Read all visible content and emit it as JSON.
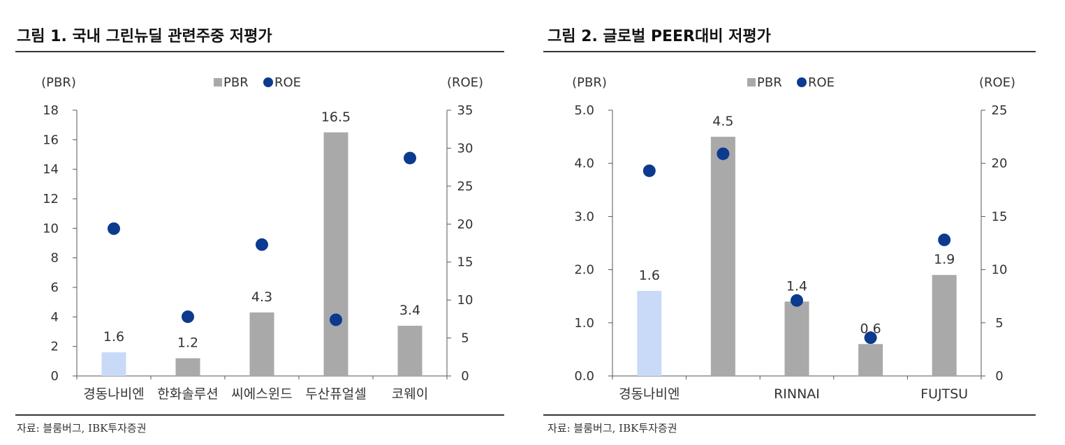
{
  "colors": {
    "bar_gray": "#aaa9a9",
    "bar_highlight": "#c8daf8",
    "roe_dot": "#0b3a8f",
    "axis": "#555555",
    "rule": "#333333"
  },
  "figures": [
    {
      "title": "그림 1. 국내 그린뉴딜 관련주중 저평가",
      "source": "자료: 블룸버그, IBK투자증권"
    },
    {
      "title": "그림 2. 글로벌 PEER대비 저평가",
      "source": "자료: 블룸버그, IBK투자증권"
    }
  ],
  "chart_data": [
    {
      "type": "bar",
      "categories": [
        "경동나비엔",
        "한화솔루션",
        "씨에스윈드",
        "두산퓨얼셀",
        "코웨이"
      ],
      "category_labels": [
        "경동나비엔",
        "한화솔루션",
        "씨에스윈드",
        "두산퓨얼셀",
        "코웨이"
      ],
      "series": [
        {
          "name": "PBR",
          "type": "bar",
          "axis": "left",
          "values": [
            1.6,
            1.2,
            4.3,
            16.5,
            3.4
          ],
          "highlight_index": 0
        },
        {
          "name": "ROE",
          "type": "scatter",
          "axis": "right",
          "values": [
            19.4,
            7.8,
            17.3,
            7.4,
            28.7
          ]
        }
      ],
      "data_labels": [
        "1.6",
        "1.2",
        "4.3",
        "16.5",
        "3.4"
      ],
      "left_axis_unit": "(PBR)",
      "right_axis_unit": "(ROE)",
      "ylim_left": [
        0,
        18
      ],
      "ylim_right": [
        0,
        35
      ],
      "ticks_left": [
        "0",
        "2",
        "4",
        "6",
        "8",
        "10",
        "12",
        "14",
        "16",
        "18"
      ],
      "ticks_right": [
        "0",
        "5",
        "10",
        "15",
        "20",
        "25",
        "30",
        "35"
      ],
      "legend": [
        "PBR",
        "ROE"
      ],
      "legend_position": "top",
      "grid": false
    },
    {
      "type": "bar",
      "categories": [
        "경동나비엔",
        "",
        "RINNAI",
        "",
        "FUJTSU"
      ],
      "category_labels": [
        "경동나비엔",
        "",
        "RINNAI",
        "",
        "FUJTSU"
      ],
      "series": [
        {
          "name": "PBR",
          "type": "bar",
          "axis": "left",
          "values": [
            1.6,
            4.5,
            1.4,
            0.6,
            1.9
          ],
          "highlight_index": 0
        },
        {
          "name": "ROE",
          "type": "scatter",
          "axis": "right",
          "values": [
            19.3,
            20.9,
            7.1,
            3.6,
            12.8
          ]
        }
      ],
      "data_labels": [
        "1.6",
        "4.5",
        "1.4",
        "0.6",
        "1.9"
      ],
      "left_axis_unit": "(PBR)",
      "right_axis_unit": "(ROE)",
      "ylim_left": [
        0,
        5
      ],
      "ylim_right": [
        0,
        25
      ],
      "ticks_left": [
        "0.0",
        "1.0",
        "2.0",
        "3.0",
        "4.0",
        "5.0"
      ],
      "ticks_right": [
        "0",
        "5",
        "10",
        "15",
        "20",
        "25"
      ],
      "legend": [
        "PBR",
        "ROE"
      ],
      "legend_position": "top",
      "grid": false
    }
  ]
}
